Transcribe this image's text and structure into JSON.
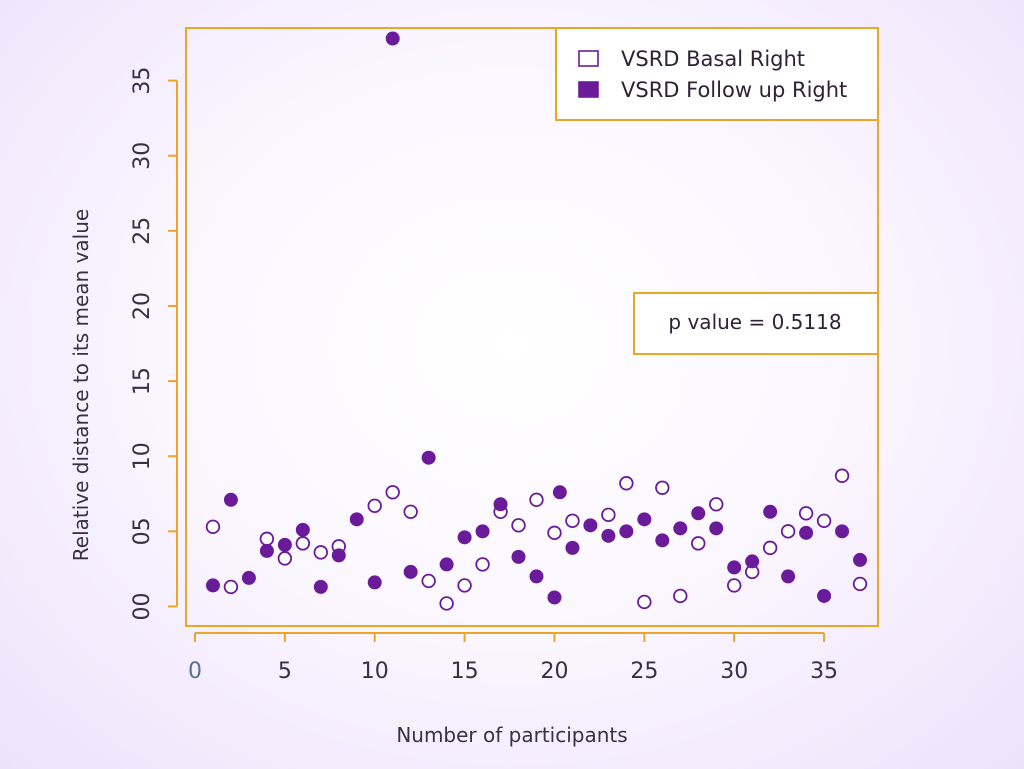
{
  "colors": {
    "frame": "#E9A628",
    "series": "#6A1B9A",
    "axis": "#E9A628",
    "text": "#3a2f45"
  },
  "annotation": {
    "text": "p value = 0.5118"
  },
  "chart_data": {
    "type": "scatter",
    "xlabel": "Number of participants",
    "ylabel": "Relative distance to its mean value",
    "xlim": [
      -0.5,
      38
    ],
    "ylim": [
      -1.3,
      38.5
    ],
    "x_ticks": [
      0,
      5,
      10,
      15,
      20,
      25,
      30,
      35
    ],
    "x_tick_labels": [
      "0",
      "5",
      "10",
      "15",
      "20",
      "25",
      "30",
      "35"
    ],
    "y_ticks": [
      0,
      5,
      10,
      15,
      20,
      25,
      30,
      35
    ],
    "y_tick_labels": [
      "00",
      "05",
      "10",
      "15",
      "20",
      "25",
      "30",
      "35"
    ],
    "legend_position": "top-right",
    "grid": false,
    "series": [
      {
        "name": "VSRD Basal Right",
        "marker": "open-circle",
        "points": [
          [
            1,
            5.3
          ],
          [
            2,
            1.3
          ],
          [
            4,
            4.5
          ],
          [
            5,
            3.2
          ],
          [
            6,
            4.2
          ],
          [
            7,
            3.6
          ],
          [
            8,
            4.0
          ],
          [
            10,
            6.7
          ],
          [
            11,
            7.6
          ],
          [
            12,
            6.3
          ],
          [
            13,
            1.7
          ],
          [
            14,
            0.2
          ],
          [
            15,
            1.4
          ],
          [
            16,
            2.8
          ],
          [
            17,
            6.3
          ],
          [
            18,
            5.4
          ],
          [
            19,
            7.1
          ],
          [
            20,
            4.9
          ],
          [
            21,
            5.7
          ],
          [
            23,
            6.1
          ],
          [
            24,
            8.2
          ],
          [
            25,
            0.3
          ],
          [
            26,
            7.9
          ],
          [
            27,
            0.7
          ],
          [
            28,
            4.2
          ],
          [
            29,
            6.8
          ],
          [
            30,
            1.4
          ],
          [
            31,
            2.3
          ],
          [
            32,
            3.9
          ],
          [
            33,
            5.0
          ],
          [
            34,
            6.2
          ],
          [
            35,
            5.7
          ],
          [
            36,
            8.7
          ],
          [
            37,
            1.5
          ]
        ]
      },
      {
        "name": "VSRD Follow up Right",
        "marker": "filled-circle",
        "points": [
          [
            1,
            1.4
          ],
          [
            2,
            7.1
          ],
          [
            3,
            1.9
          ],
          [
            4,
            3.7
          ],
          [
            5,
            4.1
          ],
          [
            6,
            5.1
          ],
          [
            7,
            1.3
          ],
          [
            8,
            3.4
          ],
          [
            9,
            5.8
          ],
          [
            10,
            1.6
          ],
          [
            11,
            37.8
          ],
          [
            12,
            2.3
          ],
          [
            13,
            9.9
          ],
          [
            14,
            2.8
          ],
          [
            15,
            4.6
          ],
          [
            16,
            5.0
          ],
          [
            17,
            6.8
          ],
          [
            18,
            3.3
          ],
          [
            19,
            2.0
          ],
          [
            20,
            0.6
          ],
          [
            20.3,
            7.6
          ],
          [
            21,
            3.9
          ],
          [
            22,
            5.4
          ],
          [
            23,
            4.7
          ],
          [
            24,
            5.0
          ],
          [
            25,
            5.8
          ],
          [
            26,
            4.4
          ],
          [
            27,
            5.2
          ],
          [
            28,
            6.2
          ],
          [
            29,
            5.2
          ],
          [
            30,
            2.6
          ],
          [
            31,
            3.0
          ],
          [
            32,
            6.3
          ],
          [
            33,
            2.0
          ],
          [
            34,
            4.9
          ],
          [
            35,
            0.7
          ],
          [
            36,
            5.0
          ],
          [
            37,
            3.1
          ]
        ]
      }
    ]
  }
}
